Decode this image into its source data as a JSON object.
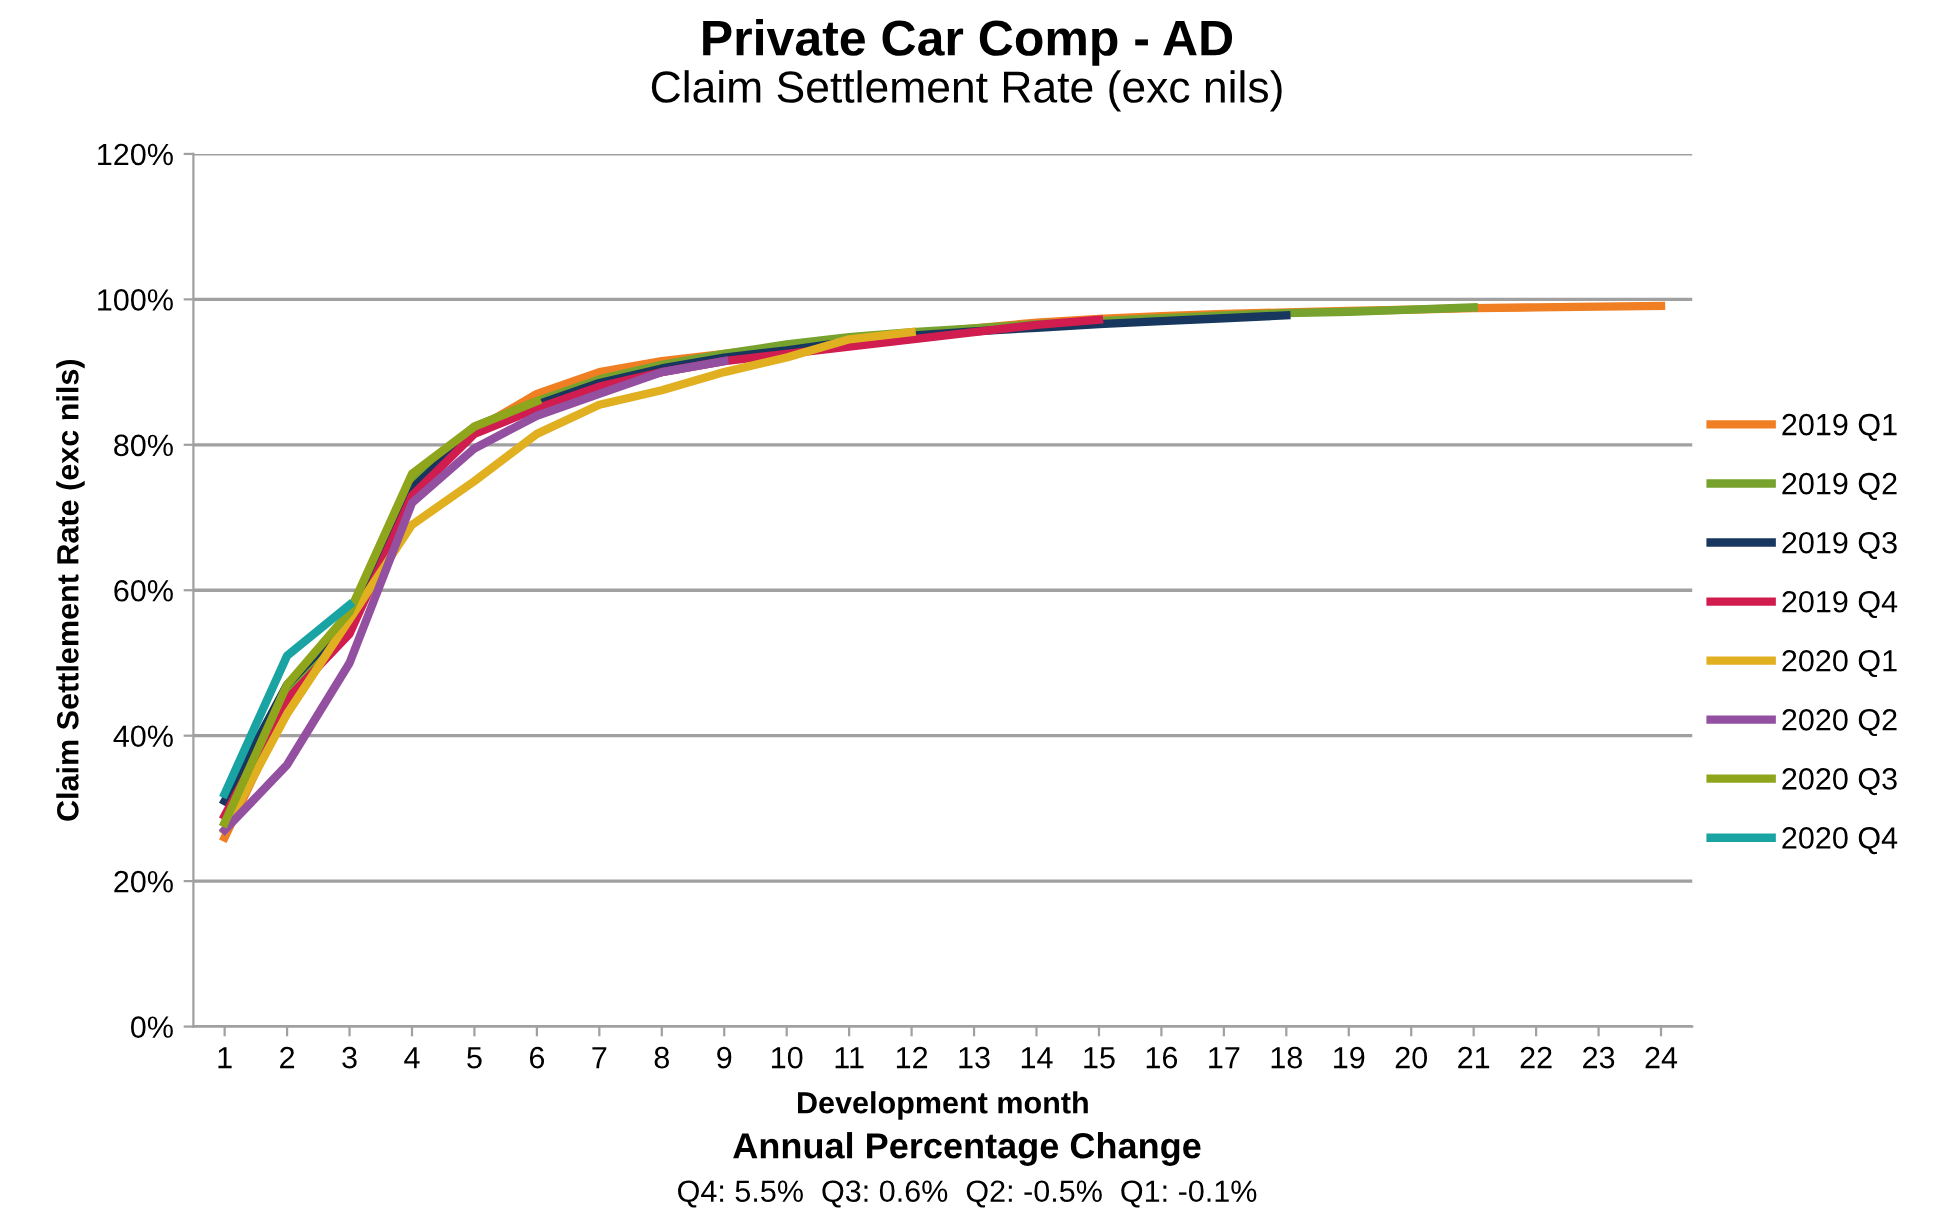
{
  "chart_data": {
    "type": "line",
    "title": "Private Car Comp - AD",
    "subtitle": "Claim Settlement Rate (exc nils)",
    "xlabel": "Development month",
    "ylabel": "Claim Settlement Rate (exc nils)",
    "categories": [
      "1",
      "2",
      "3",
      "4",
      "5",
      "6",
      "7",
      "8",
      "9",
      "10",
      "11",
      "12",
      "13",
      "14",
      "15",
      "16",
      "17",
      "18",
      "19",
      "20",
      "21",
      "22",
      "23",
      "24"
    ],
    "series": [
      {
        "name": "2019 Q1",
        "color": "#f07f23",
        "values": [
          26,
          44,
          55,
          73,
          82,
          87,
          90,
          91.5,
          92.5,
          93.5,
          94.5,
          95.2,
          96,
          96.8,
          97.3,
          97.7,
          98,
          98.2,
          98.4,
          98.6,
          98.8,
          98.9,
          99,
          99.1
        ]
      },
      {
        "name": "2019 Q2",
        "color": "#77a22d",
        "values": [
          28,
          46,
          56,
          75,
          82.5,
          86,
          89,
          91,
          92.5,
          93.8,
          94.8,
          95.5,
          96,
          96.6,
          97,
          97.4,
          97.8,
          98.1,
          98.3,
          98.6,
          98.9,
          null,
          null,
          null
        ]
      },
      {
        "name": "2019 Q3",
        "color": "#17375e",
        "values": [
          31,
          47,
          56,
          74,
          82,
          85.5,
          88.5,
          90.5,
          92,
          93,
          94.2,
          95,
          95.6,
          96.1,
          96.6,
          97,
          97.4,
          97.8,
          null,
          null,
          null,
          null,
          null,
          null
        ]
      },
      {
        "name": "2019 Q4",
        "color": "#d01c4f",
        "values": [
          29,
          45,
          54,
          73,
          81.5,
          85,
          88,
          90,
          91.5,
          92.5,
          93.5,
          94.5,
          95.5,
          96.5,
          97.2,
          null,
          null,
          null,
          null,
          null,
          null,
          null,
          null,
          null
        ]
      },
      {
        "name": "2020 Q1",
        "color": "#e0b020",
        "values": [
          27,
          43,
          56,
          69,
          75,
          81.5,
          85.5,
          87.5,
          90,
          92,
          94.5,
          95.5,
          null,
          null,
          null,
          null,
          null,
          null,
          null,
          null,
          null,
          null,
          null,
          null
        ]
      },
      {
        "name": "2020 Q2",
        "color": "#9350a1",
        "values": [
          27,
          36,
          50,
          72,
          79.5,
          84,
          87,
          90,
          91.5,
          null,
          null,
          null,
          null,
          null,
          null,
          null,
          null,
          null,
          null,
          null,
          null,
          null,
          null,
          null
        ]
      },
      {
        "name": "2020 Q3",
        "color": "#8fa51c",
        "values": [
          28,
          47,
          57,
          76,
          82.5,
          86,
          null,
          null,
          null,
          null,
          null,
          null,
          null,
          null,
          null,
          null,
          null,
          null,
          null,
          null,
          null,
          null,
          null,
          null
        ]
      },
      {
        "name": "2020 Q4",
        "color": "#1aa3a3",
        "values": [
          32,
          51,
          58,
          null,
          null,
          null,
          null,
          null,
          null,
          null,
          null,
          null,
          null,
          null,
          null,
          null,
          null,
          null,
          null,
          null,
          null,
          null,
          null,
          null
        ]
      }
    ],
    "ylim": [
      0,
      120
    ],
    "yticks": [
      {
        "value": 0,
        "label": "0%"
      },
      {
        "value": 20,
        "label": "20%"
      },
      {
        "value": 40,
        "label": "40%"
      },
      {
        "value": 60,
        "label": "60%"
      },
      {
        "value": 80,
        "label": "80%"
      },
      {
        "value": 100,
        "label": "100%"
      },
      {
        "value": 120,
        "label": "120%"
      }
    ],
    "grid": "y",
    "legend": "right",
    "marker": "none",
    "line_style": "solid",
    "annotations": [
      "Annual Percentage Change",
      "Q4: 5.5%  Q3: 0.6%  Q2: -0.5%  Q1: -0.1%"
    ]
  }
}
